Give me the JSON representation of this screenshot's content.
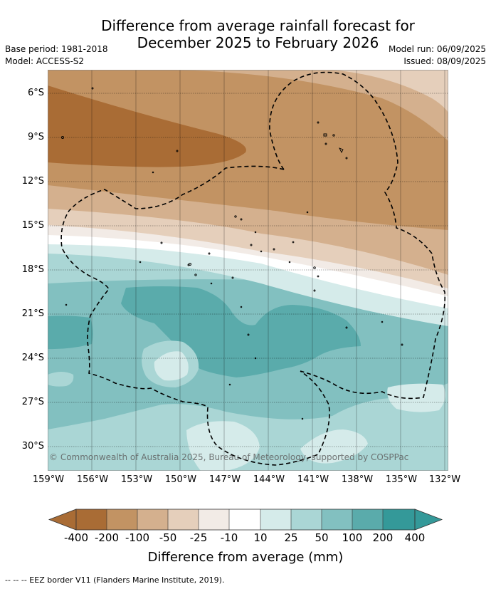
{
  "title": {
    "line1": "Difference from average rainfall forecast for",
    "line2": "December 2025 to February 2026"
  },
  "meta": {
    "base_period": "Base period: 1981-2018",
    "model": "Model: ACCESS-S2",
    "model_run": "Model run: 06/09/2025",
    "issued": "Issued: 08/09/2025"
  },
  "map": {
    "lat_labels": [
      "6°S",
      "9°S",
      "12°S",
      "15°S",
      "18°S",
      "21°S",
      "24°S",
      "27°S",
      "30°S"
    ],
    "lon_labels": [
      "159°W",
      "156°W",
      "153°W",
      "150°W",
      "147°W",
      "144°W",
      "141°W",
      "138°W",
      "135°W",
      "132°W"
    ],
    "lat_range": [
      -32.5,
      -5
    ],
    "lon_range": [
      -159,
      -132
    ],
    "copyright": "© Commonwealth of Australia 2025, Bureau of Meteorology, supported by COSPPac",
    "colors": {
      "n400": "#a96c35",
      "n200": "#c29363",
      "n100": "#d4b08e",
      "n50": "#e5cfbb",
      "n25": "#f2ebe6",
      "n10": "#ffffff",
      "p10": "#d5ebea",
      "p25": "#aad6d5",
      "p50": "#82c0c0",
      "p100": "#5aabab",
      "p200": "#349999"
    }
  },
  "colorbar": {
    "ticks": [
      "-400",
      "-200",
      "-100",
      "-50",
      "-25",
      "-10",
      "10",
      "25",
      "50",
      "100",
      "200",
      "400"
    ],
    "label": "Difference from average (mm)"
  },
  "footer": {
    "legend": "--  --  -- EEZ border V11 (Flanders Marine Institute, 2019)."
  }
}
